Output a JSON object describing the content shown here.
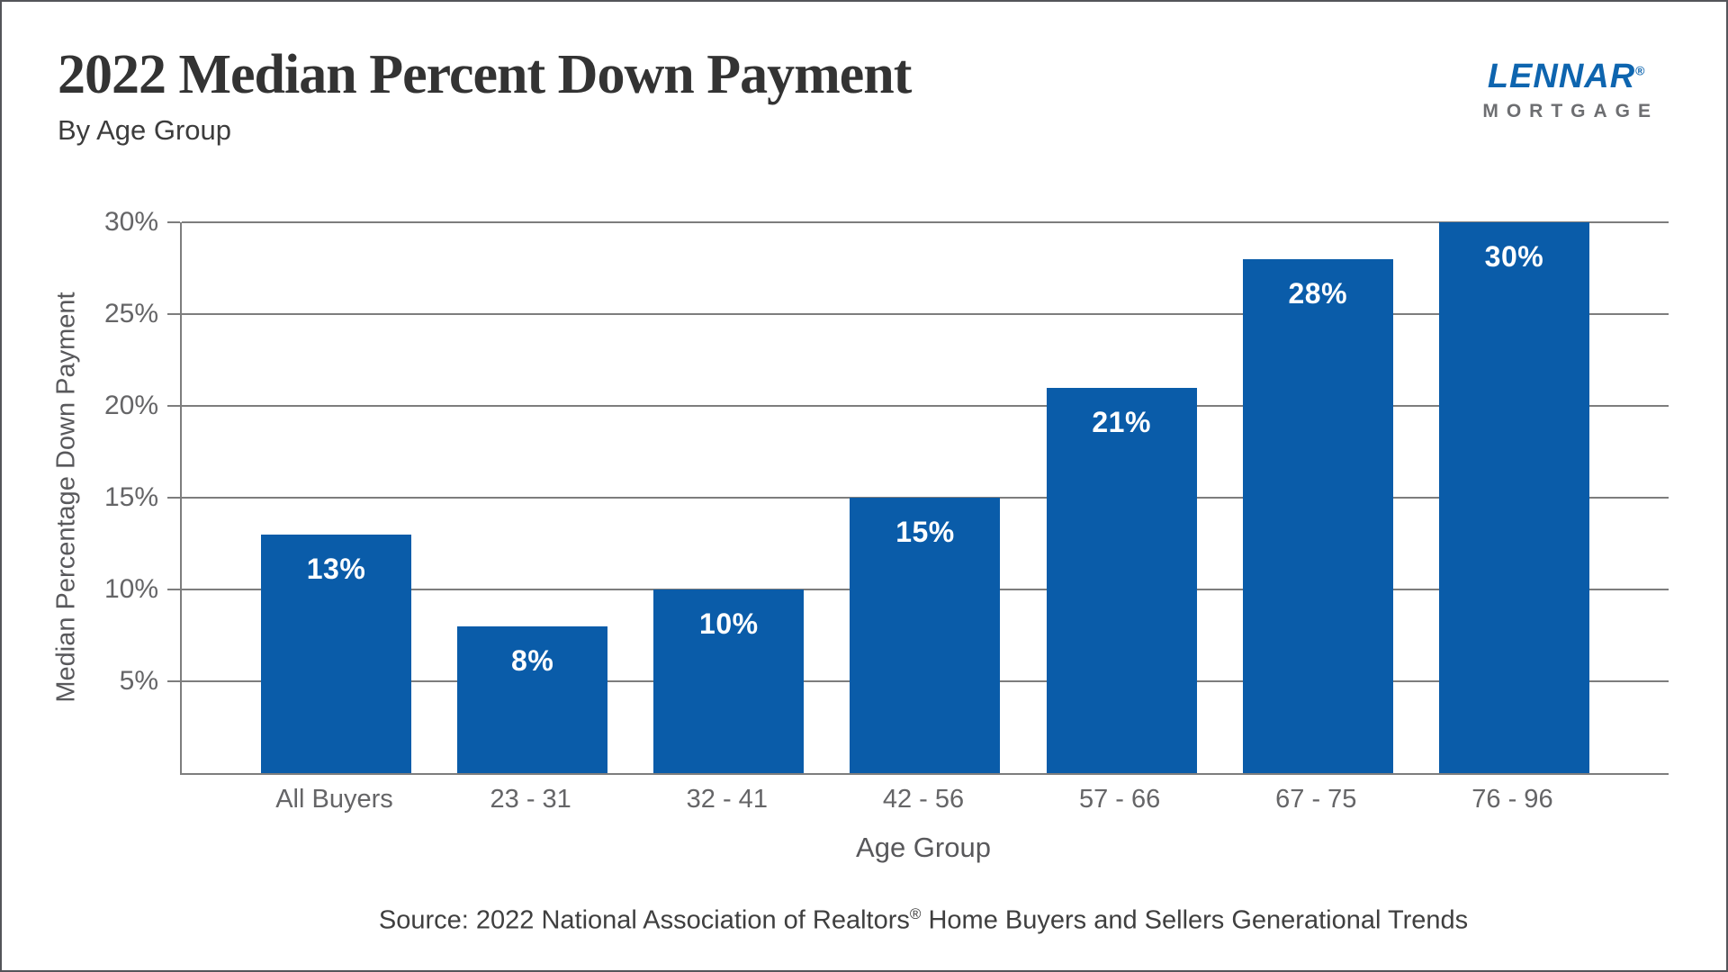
{
  "header": {
    "title": "2022 Median Percent Down Payment",
    "subtitle": "By Age Group"
  },
  "logo": {
    "brand": "LENNAR",
    "registered": "®",
    "division": "MORTGAGE"
  },
  "chart_data": {
    "type": "bar",
    "title": "2022 Median Percent Down Payment",
    "subtitle": "By Age Group",
    "categories": [
      "All Buyers",
      "23 - 31",
      "32 - 41",
      "42 - 56",
      "57 - 66",
      "67 - 75",
      "76 - 96"
    ],
    "values": [
      13,
      8,
      10,
      15,
      21,
      28,
      30
    ],
    "value_labels": [
      "13%",
      "8%",
      "10%",
      "15%",
      "21%",
      "28%",
      "30%"
    ],
    "xlabel": "Age Group",
    "ylabel": "Median Percentage Down Payment",
    "ylim": [
      0,
      30
    ],
    "ytick_values": [
      5,
      10,
      15,
      20,
      25,
      30
    ],
    "ytick_labels": [
      "5%",
      "10%",
      "15%",
      "20%",
      "25%",
      "30%"
    ],
    "grid": "horizontal",
    "legend": "none"
  },
  "source": {
    "prefix": "Source: 2022 National Association of Realtors",
    "registered": "®",
    "suffix": " Home Buyers and Sellers Generational Trends"
  },
  "colors": {
    "bar": "#0A5CA9",
    "gridline": "#7D7D7D",
    "axis_text": "#656567",
    "title_text": "#333333",
    "logo_blue": "#0E65AF",
    "logo_gray": "#6D6E71",
    "border": "#54555A",
    "value_label": "#FFFFFF"
  }
}
